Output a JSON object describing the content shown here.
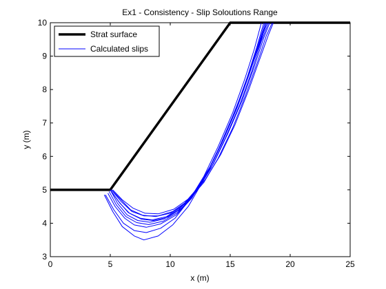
{
  "chart_data": {
    "type": "line",
    "title": "Ex1 - Consistency - Slip Soloutions Range",
    "xlabel": "x (m)",
    "ylabel": "y (m)",
    "xlim": [
      0,
      25
    ],
    "ylim": [
      3,
      10
    ],
    "xticks": [
      0,
      5,
      10,
      15,
      20,
      25
    ],
    "yticks": [
      3,
      4,
      5,
      6,
      7,
      8,
      9,
      10
    ],
    "grid": false,
    "legend_position": "top-left",
    "colors": {
      "strat": "#000000",
      "slips": "#0000ff"
    },
    "series": [
      {
        "name": "Strat surface",
        "role": "strat",
        "x": [
          0,
          5,
          15,
          25
        ],
        "y": [
          5,
          5,
          10,
          10
        ]
      },
      {
        "name": "Calculated slips",
        "role": "slip",
        "x": [
          4.5,
          5.2,
          6.0,
          7.0,
          7.8,
          9.0,
          10.2,
          11.5,
          12.8,
          14.0,
          15.2,
          16.2,
          17.0,
          17.6,
          18.0
        ],
        "y": [
          4.85,
          4.35,
          3.9,
          3.62,
          3.5,
          3.62,
          3.95,
          4.5,
          5.3,
          6.2,
          7.2,
          8.1,
          8.9,
          9.5,
          10.0
        ]
      },
      {
        "role": "slip",
        "x": [
          4.6,
          5.3,
          6.1,
          7.0,
          8.0,
          9.2,
          10.4,
          11.6,
          12.8,
          14.0,
          15.2,
          16.2,
          17.0,
          17.6
        ],
        "y": [
          4.85,
          4.4,
          4.0,
          3.78,
          3.72,
          3.85,
          4.15,
          4.7,
          5.4,
          6.3,
          7.3,
          8.3,
          9.2,
          10.0
        ]
      },
      {
        "role": "slip",
        "x": [
          4.8,
          5.4,
          6.2,
          7.0,
          8.0,
          9.2,
          10.5,
          11.8,
          13.0,
          14.2,
          15.4,
          16.4,
          17.2,
          17.8
        ],
        "y": [
          4.9,
          4.5,
          4.15,
          3.95,
          3.88,
          3.98,
          4.25,
          4.75,
          5.45,
          6.35,
          7.35,
          8.35,
          9.25,
          10.0
        ]
      },
      {
        "role": "slip",
        "x": [
          4.9,
          5.5,
          6.3,
          7.2,
          8.2,
          9.4,
          10.6,
          11.9,
          13.1,
          14.3,
          15.5,
          16.5,
          17.3,
          17.9
        ],
        "y": [
          4.95,
          4.55,
          4.2,
          4.02,
          3.96,
          4.06,
          4.32,
          4.82,
          5.5,
          6.4,
          7.4,
          8.4,
          9.3,
          10.0
        ]
      },
      {
        "role": "slip",
        "x": [
          5.0,
          5.6,
          6.4,
          7.3,
          8.3,
          9.5,
          10.7,
          12.0,
          13.2,
          14.4,
          15.6,
          16.6,
          17.4,
          18.0
        ],
        "y": [
          5.0,
          4.6,
          4.25,
          4.08,
          4.03,
          4.13,
          4.4,
          4.9,
          5.58,
          6.48,
          7.48,
          8.48,
          9.38,
          10.0
        ]
      },
      {
        "role": "slip",
        "x": [
          5.0,
          5.7,
          6.5,
          7.5,
          8.5,
          9.7,
          10.9,
          12.1,
          13.3,
          14.5,
          15.7,
          16.7,
          17.5,
          18.1
        ],
        "y": [
          5.0,
          4.65,
          4.32,
          4.15,
          4.1,
          4.2,
          4.48,
          4.98,
          5.68,
          6.58,
          7.58,
          8.58,
          9.45,
          10.0
        ]
      },
      {
        "role": "slip",
        "x": [
          5.0,
          5.8,
          6.6,
          7.6,
          8.6,
          9.8,
          11.0,
          12.2,
          13.4,
          14.6,
          15.8,
          16.8,
          17.6,
          18.2
        ],
        "y": [
          5.0,
          4.6,
          4.3,
          4.12,
          4.08,
          4.18,
          4.46,
          4.96,
          5.65,
          6.55,
          7.55,
          8.55,
          9.45,
          10.0
        ]
      },
      {
        "role": "slip",
        "x": [
          5.1,
          5.9,
          6.7,
          7.7,
          8.8,
          10.0,
          11.2,
          12.4,
          13.6,
          14.8,
          16.0,
          17.0,
          17.8,
          18.3
        ],
        "y": [
          5.0,
          4.7,
          4.4,
          4.24,
          4.2,
          4.3,
          4.58,
          5.08,
          5.78,
          6.68,
          7.68,
          8.68,
          9.55,
          10.0
        ]
      },
      {
        "role": "slip",
        "x": [
          5.1,
          5.9,
          6.8,
          7.8,
          9.0,
          10.2,
          11.5,
          12.8,
          14.0,
          15.2,
          16.3,
          17.3,
          18.0,
          18.5
        ],
        "y": [
          5.0,
          4.65,
          4.35,
          4.22,
          4.22,
          4.35,
          4.68,
          5.22,
          5.95,
          6.85,
          7.85,
          8.85,
          9.6,
          10.0
        ]
      },
      {
        "role": "slip",
        "x": [
          5.2,
          6.0,
          6.9,
          7.9,
          9.0,
          10.3,
          11.6,
          12.9,
          14.2,
          15.4,
          16.5,
          17.5,
          18.2,
          18.6
        ],
        "y": [
          5.0,
          4.7,
          4.45,
          4.3,
          4.28,
          4.42,
          4.75,
          5.3,
          6.05,
          6.95,
          7.95,
          8.95,
          9.65,
          10.0
        ]
      }
    ]
  }
}
